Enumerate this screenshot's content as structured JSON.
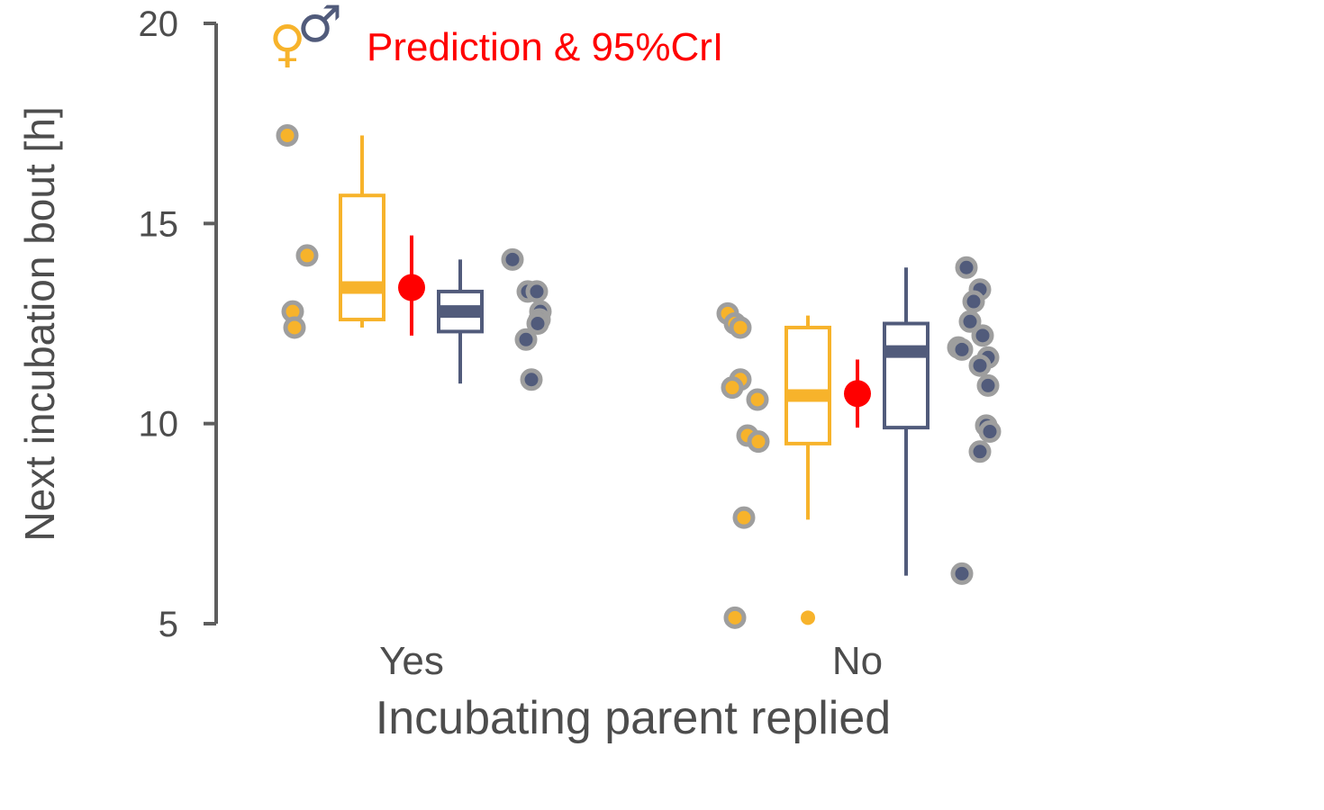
{
  "chart_data": {
    "type": "box",
    "title": "",
    "xlabel": "Incubating parent replied",
    "ylabel": "Next incubation bout [h]",
    "ylim": [
      5,
      20
    ],
    "yticks": [
      5,
      10,
      15,
      20
    ],
    "categories": [
      "Yes",
      "No"
    ],
    "grid": false,
    "colors": {
      "female": "#f7b32b",
      "male": "#515b7b",
      "prediction": "#ff0000",
      "axis": "#5e5e5e",
      "point_outline": "#9e9e9e"
    },
    "legend": {
      "female_symbol": "♀",
      "male_symbol": "♂",
      "prediction_label": "Prediction & 95%CrI",
      "placement": "top-left"
    },
    "groups": [
      {
        "category": "Yes",
        "female": {
          "box": {
            "whisker_low": 12.4,
            "q1": 12.6,
            "median": 13.4,
            "q3": 15.7,
            "whisker_high": 17.2
          },
          "points": [
            17.2,
            14.2,
            12.8,
            12.4
          ],
          "outliers": []
        },
        "prediction": {
          "estimate": 13.4,
          "lower": 12.2,
          "upper": 14.7
        },
        "male": {
          "box": {
            "whisker_low": 11.0,
            "q1": 12.3,
            "median": 12.8,
            "q3": 13.3,
            "whisker_high": 14.1
          },
          "points": [
            14.1,
            13.3,
            13.3,
            12.8,
            12.6,
            12.5,
            12.1,
            11.1
          ]
        }
      },
      {
        "category": "No",
        "female": {
          "box": {
            "whisker_low": 7.6,
            "q1": 9.5,
            "median": 10.7,
            "q3": 12.4,
            "whisker_high": 12.7
          },
          "points": [
            12.75,
            12.5,
            12.4,
            11.1,
            10.9,
            10.6,
            9.7,
            9.55,
            7.65,
            5.15
          ],
          "outliers": [
            5.15
          ]
        },
        "prediction": {
          "estimate": 10.75,
          "lower": 9.9,
          "upper": 11.6
        },
        "male": {
          "box": {
            "whisker_low": 6.2,
            "q1": 9.9,
            "median": 11.8,
            "q3": 12.5,
            "whisker_high": 13.9
          },
          "points": [
            13.9,
            13.35,
            13.05,
            12.55,
            12.2,
            11.9,
            11.85,
            11.65,
            11.45,
            10.95,
            9.95,
            9.8,
            9.3,
            6.25
          ]
        }
      }
    ]
  }
}
